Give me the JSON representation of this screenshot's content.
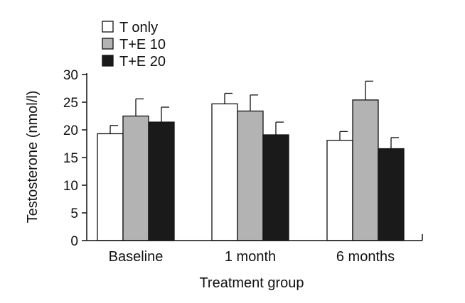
{
  "chart_data": {
    "type": "bar",
    "title": "",
    "xlabel": "Treatment group",
    "ylabel": "Testosterone (nmol/l)",
    "ylim": [
      0,
      30
    ],
    "yticks": [
      0,
      5,
      10,
      15,
      20,
      25,
      30
    ],
    "categories": [
      "Baseline",
      "1 month",
      "6 months"
    ],
    "series": [
      {
        "name": "T only",
        "color": "#ffffff",
        "values": [
          19.3,
          24.7,
          18.1
        ],
        "errors": [
          1.5,
          1.9,
          1.6
        ]
      },
      {
        "name": "T+E 10",
        "color": "#b3b3b3",
        "values": [
          22.5,
          23.4,
          25.4
        ],
        "errors": [
          3.1,
          2.9,
          3.4
        ]
      },
      {
        "name": "T+E 20",
        "color": "#1a1a1a",
        "values": [
          21.4,
          19.1,
          16.6
        ],
        "errors": [
          2.7,
          2.3,
          2.0
        ]
      }
    ],
    "error_bars": "upper",
    "legend_position": "top-left",
    "grid": false
  }
}
